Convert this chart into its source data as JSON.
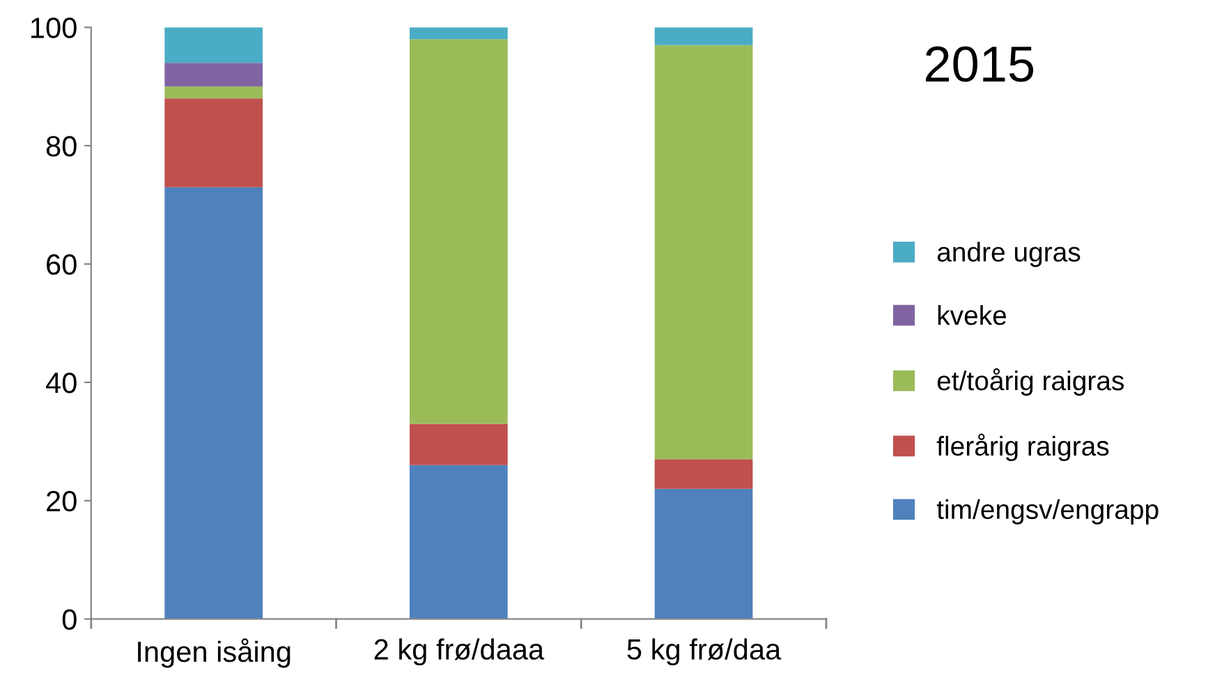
{
  "chart_data": {
    "type": "bar",
    "title": "2015",
    "stacked": true,
    "legend": "right",
    "grid": false,
    "categories": [
      "Ingen isåing",
      "2 kg frø/daaa",
      "5 kg frø/daa"
    ],
    "ylim": [
      0,
      100
    ],
    "yticks": [
      0,
      20,
      40,
      60,
      80,
      100
    ],
    "series": [
      {
        "name": "tim/engsv/engrapp",
        "color": "#4f81bd",
        "values": [
          73,
          26,
          22
        ]
      },
      {
        "name": "flerårig raigras",
        "color": "#c0504d",
        "values": [
          15,
          7,
          5
        ]
      },
      {
        "name": "et/toårig raigras",
        "color": "#9bbb59",
        "values": [
          2,
          65,
          70
        ]
      },
      {
        "name": "kveke",
        "color": "#8064a2",
        "values": [
          4,
          0,
          0
        ]
      },
      {
        "name": "andre ugras",
        "color": "#4bacc6",
        "values": [
          6,
          2,
          3
        ]
      }
    ]
  }
}
